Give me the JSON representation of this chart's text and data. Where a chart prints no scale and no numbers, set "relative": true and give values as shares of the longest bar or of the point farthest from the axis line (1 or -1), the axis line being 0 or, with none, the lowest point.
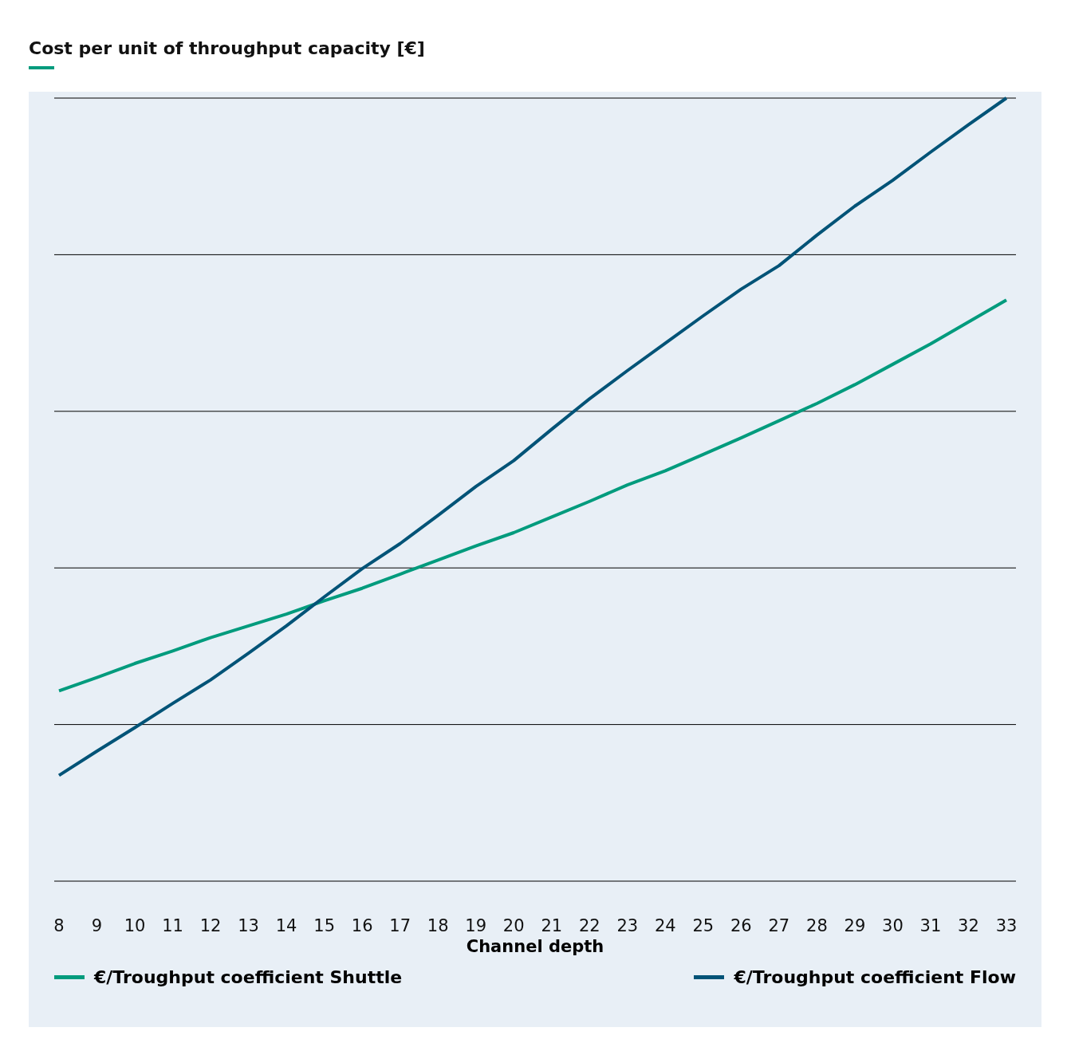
{
  "chart_data": {
    "type": "line",
    "title": "Cost per unit of throughput capacity [€]",
    "xlabel": "Channel depth",
    "relative": true,
    "grid": "y",
    "legend": "bottom",
    "marker": "none",
    "line_style": "solid",
    "categories": [
      "8",
      "9",
      "10",
      "11",
      "12",
      "13",
      "14",
      "15",
      "16",
      "17",
      "18",
      "19",
      "20",
      "21",
      "22",
      "23",
      "24",
      "25",
      "26",
      "27",
      "28",
      "29",
      "30",
      "31",
      "32",
      "33"
    ],
    "series": [
      {
        "name": "€/Troughput coefficient Shuttle",
        "color": "#009b7d",
        "values": [
          0.243,
          0.26,
          0.278,
          0.294,
          0.311,
          0.326,
          0.341,
          0.358,
          0.374,
          0.392,
          0.41,
          0.428,
          0.445,
          0.465,
          0.485,
          0.506,
          0.524,
          0.545,
          0.566,
          0.588,
          0.61,
          0.634,
          0.66,
          0.686,
          0.714,
          0.742
        ]
      },
      {
        "name": "€/Troughput coefficient Flow",
        "color": "#005377",
        "values": [
          0.135,
          0.166,
          0.196,
          0.227,
          0.257,
          0.291,
          0.326,
          0.363,
          0.399,
          0.431,
          0.467,
          0.504,
          0.537,
          0.577,
          0.616,
          0.652,
          0.687,
          0.722,
          0.756,
          0.786,
          0.825,
          0.862,
          0.895,
          0.931,
          0.966,
          1
        ]
      }
    ]
  }
}
